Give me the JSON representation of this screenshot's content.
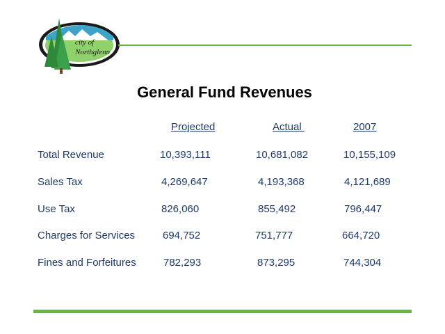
{
  "logo": {
    "text_line1": "city of",
    "text_line2": "Northglenn"
  },
  "title": "General Fund Revenues",
  "columns": [
    "Projected",
    "Actual ",
    "2007"
  ],
  "rows": [
    {
      "label": "Total Revenue",
      "values": [
        "10,393,111",
        "10,681,082",
        "10,155,109"
      ]
    },
    {
      "label": "Sales Tax",
      "values": [
        "4,269,647",
        "4,193,368",
        "4,121,689"
      ]
    },
    {
      "label": "Use Tax",
      "values": [
        "826,060",
        "855,492",
        "796,447"
      ]
    },
    {
      "label": "Charges for Services",
      "values": [
        "694,752",
        "751,777",
        "664,720"
      ]
    },
    {
      "label": "Fines and Forfeitures",
      "values": [
        "782,293",
        "873,295",
        "744,304"
      ]
    }
  ],
  "colors": {
    "accent_green": "#6ab539",
    "text_navy": "#1f3a68"
  }
}
